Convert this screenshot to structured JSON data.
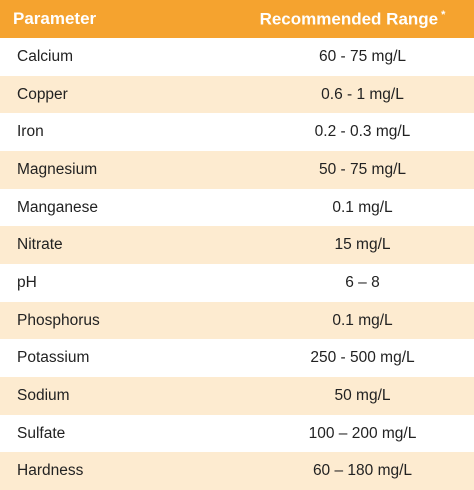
{
  "header": {
    "parameter_label": "Parameter",
    "range_label": "Recommended Range",
    "range_note_mark": "*"
  },
  "rows": [
    {
      "parameter": "Calcium",
      "range": "60 - 75 mg/L"
    },
    {
      "parameter": "Copper",
      "range": "0.6 - 1 mg/L"
    },
    {
      "parameter": "Iron",
      "range": "0.2 - 0.3 mg/L"
    },
    {
      "parameter": "Magnesium",
      "range": "50 - 75 mg/L"
    },
    {
      "parameter": "Manganese",
      "range": "0.1 mg/L"
    },
    {
      "parameter": "Nitrate",
      "range": "15  mg/L"
    },
    {
      "parameter": "pH",
      "range": "6 – 8"
    },
    {
      "parameter": "Phosphorus",
      "range": "0.1 mg/L"
    },
    {
      "parameter": "Potassium",
      "range": "250 - 500 mg/L"
    },
    {
      "parameter": "Sodium",
      "range": "50 mg/L"
    },
    {
      "parameter": "Sulfate",
      "range": "100 – 200 mg/L"
    },
    {
      "parameter": "Hardness",
      "range": "60 – 180 mg/L"
    }
  ],
  "colors": {
    "header_background": "#f5a32f",
    "header_text": "#ffffff",
    "row_alt_background": "#fdebd0"
  }
}
